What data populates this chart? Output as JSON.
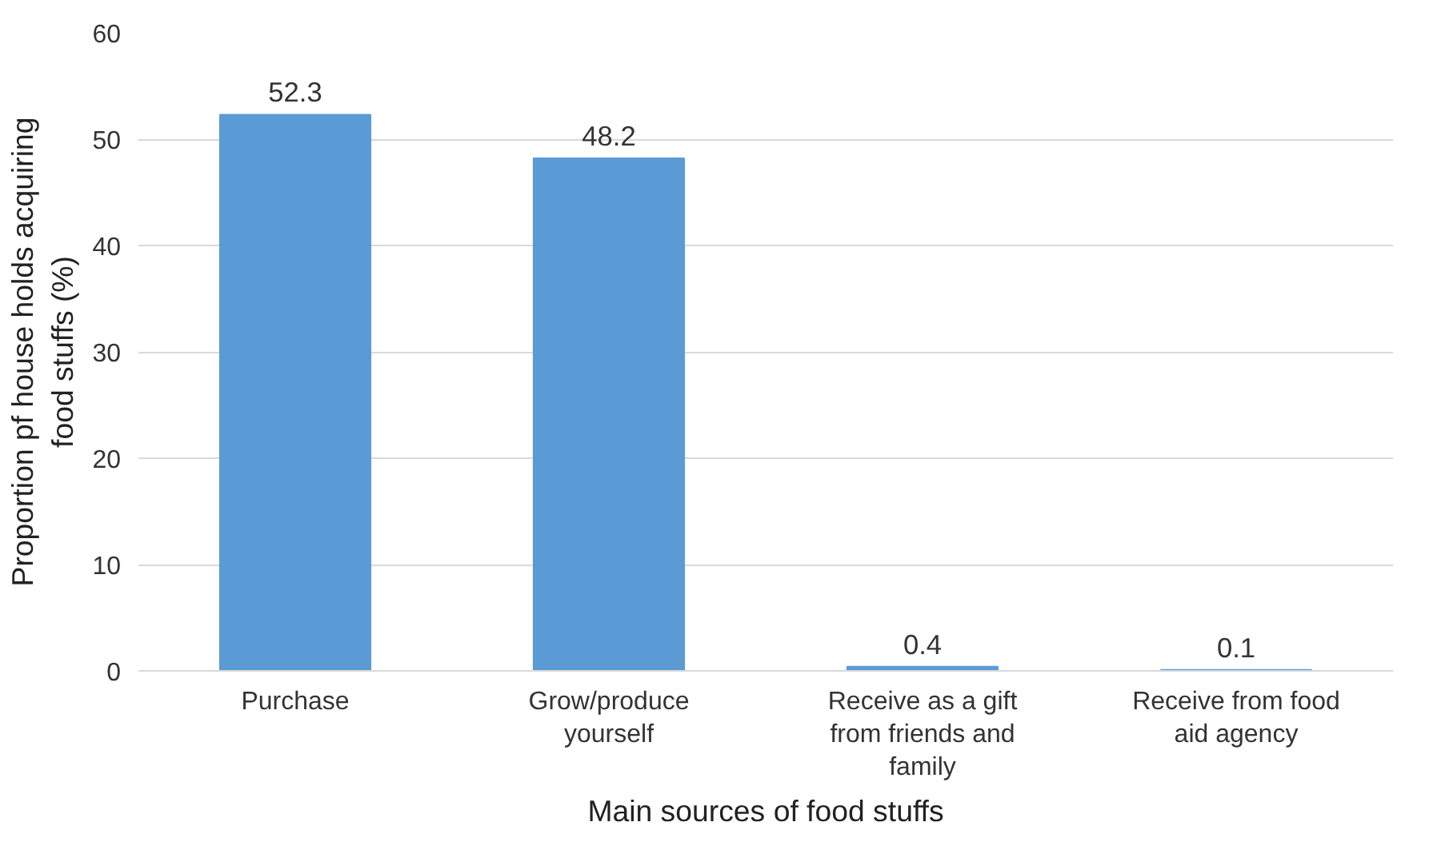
{
  "chart_data": {
    "type": "bar",
    "xlabel": "Main sources of food stuffs",
    "ylabel": "Proportion pf house holds acquiring food stuffs (%)",
    "categories": [
      "Purchase",
      "Grow/produce yourself",
      "Receive as a gift from friends and family",
      "Receive from food aid agency"
    ],
    "values": [
      52.3,
      48.2,
      0.4,
      0.1
    ],
    "color": "#5b9bd5",
    "ylim": [
      0,
      60
    ],
    "yticks": [
      0,
      10,
      20,
      30,
      40,
      50,
      60
    ],
    "grid": "y",
    "data_labels": true
  }
}
